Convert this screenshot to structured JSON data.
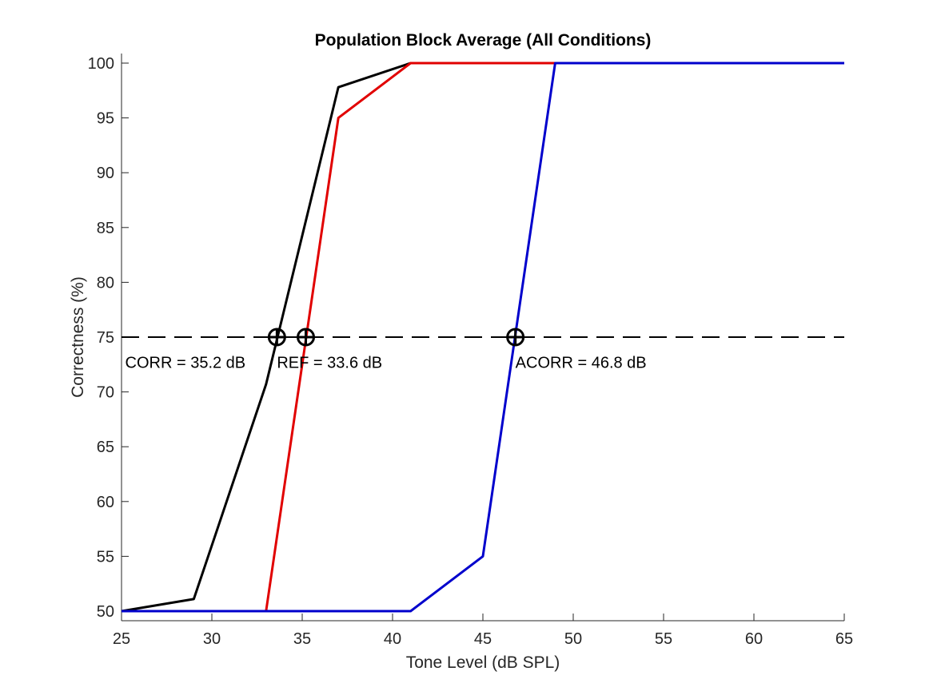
{
  "chart_data": {
    "type": "line",
    "title": "Population Block Average (All Conditions)",
    "xlabel": "Tone Level (dB SPL)",
    "ylabel": "Correctness (%)",
    "xlim": [
      25,
      65
    ],
    "ylim": [
      50,
      100
    ],
    "xticks": [
      25,
      30,
      35,
      40,
      45,
      50,
      55,
      60,
      65
    ],
    "yticks": [
      50,
      55,
      60,
      65,
      70,
      75,
      80,
      85,
      90,
      95,
      100
    ],
    "grid": false,
    "series": [
      {
        "color": "#000000",
        "x": [
          25,
          29,
          33,
          37,
          41,
          45,
          49,
          53,
          57,
          61,
          65
        ],
        "y": [
          50,
          51.1,
          70.7,
          97.8,
          100,
          100,
          100,
          100,
          100,
          100,
          100
        ]
      },
      {
        "color": "#e10000",
        "x": [
          25,
          29,
          33,
          37,
          41,
          45,
          49,
          53,
          57,
          61,
          65
        ],
        "y": [
          null,
          null,
          50,
          95,
          100,
          100,
          100,
          100,
          100,
          100,
          100
        ]
      },
      {
        "color": "#0000cc",
        "x": [
          25,
          29,
          33,
          37,
          41,
          45,
          49,
          53,
          57,
          61,
          65
        ],
        "y": [
          50,
          50,
          50,
          50,
          50,
          55,
          100,
          100,
          100,
          100,
          100
        ]
      }
    ],
    "reference_line": {
      "y": 75,
      "style": "dashed",
      "color": "#000000"
    },
    "threshold_markers": [
      {
        "x": 33.6,
        "y": 75
      },
      {
        "x": 35.2,
        "y": 75
      },
      {
        "x": 46.8,
        "y": 75
      }
    ],
    "annotations": [
      {
        "text": "CORR = 35.2 dB",
        "x": 25.2,
        "y": 72.7
      },
      {
        "text": "REF = 33.6 dB",
        "x": 33.6,
        "y": 72.7
      },
      {
        "text": "ACORR = 46.8 dB",
        "x": 46.8,
        "y": 72.7
      }
    ]
  }
}
